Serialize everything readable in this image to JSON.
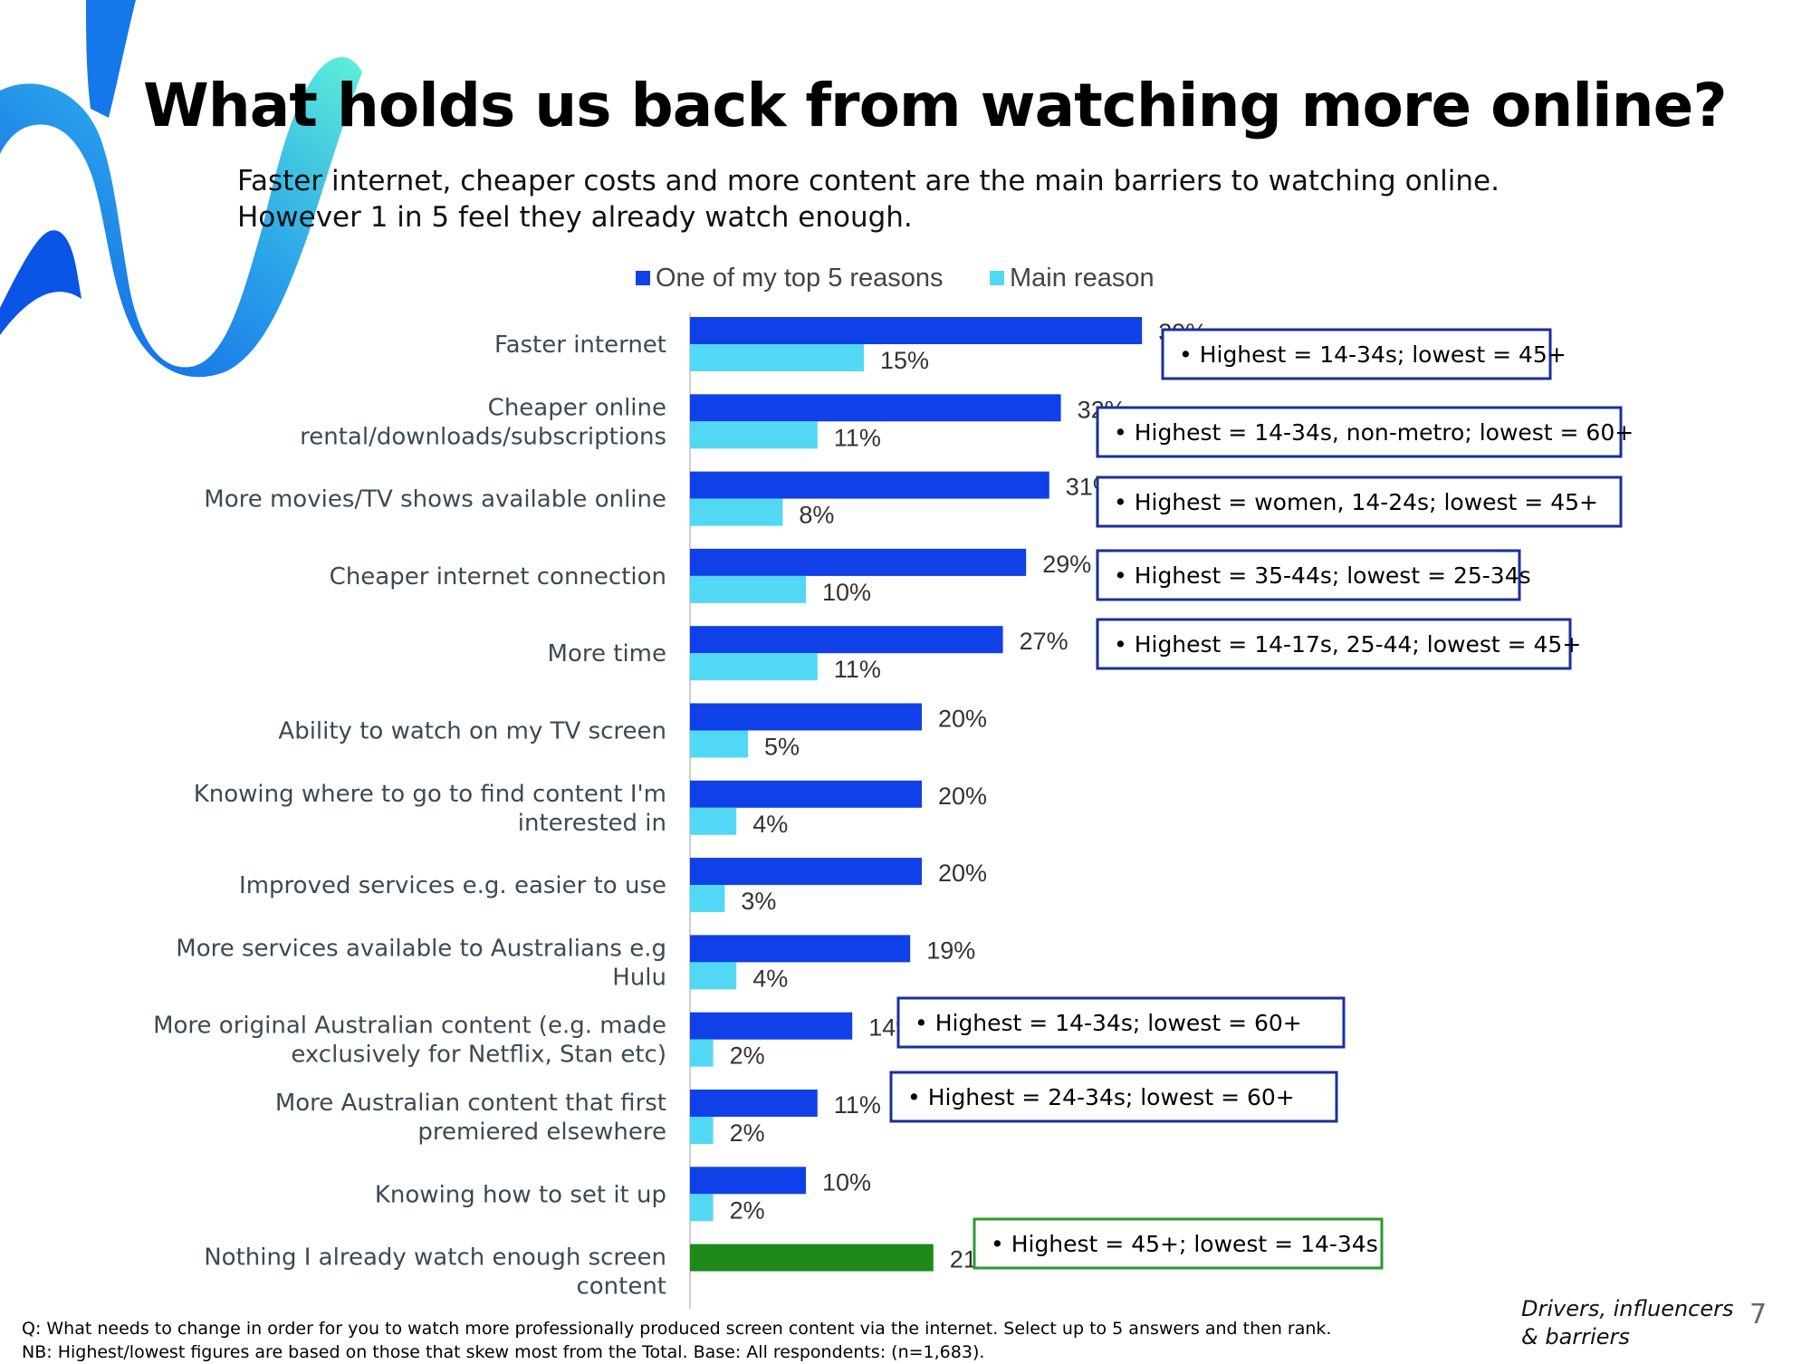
{
  "header": {
    "title": "What holds us back from watching more online?",
    "subtitle_line1": "Faster internet, cheaper costs and more content are the main barriers to watching online.",
    "subtitle_line2": "However 1 in 5 feel they already watch enough."
  },
  "colors": {
    "top5": "#1040e8",
    "main": "#52d8f4",
    "nothing": "#1f8a1a",
    "callout_border": "#1a2f9c",
    "callout_border_green": "#2c9a2c",
    "label_text": "#3a4a55"
  },
  "chart_data": {
    "type": "bar",
    "orientation": "horizontal",
    "legend_position": "top",
    "xlim": [
      0,
      40
    ],
    "categories": [
      "Faster internet",
      "Cheaper online rental/downloads/subscriptions",
      "More movies/TV shows available online",
      "Cheaper internet connection",
      "More time",
      "Ability to watch on my TV screen",
      "Knowing where to go to find content I'm interested in",
      "Improved services e.g. easier to use",
      "More services available to Australians e.g Hulu",
      "More original Australian content (e.g. made exclusively for Netflix, Stan etc)",
      "More Australian content that first premiered elsewhere",
      "Knowing how to set it up",
      "Nothing I already watch enough screen content"
    ],
    "category_lines": [
      [
        "Faster internet"
      ],
      [
        "Cheaper online",
        "rental/downloads/subscriptions"
      ],
      [
        "More movies/TV shows available online"
      ],
      [
        "Cheaper internet connection"
      ],
      [
        "More time"
      ],
      [
        "Ability to watch on my TV screen"
      ],
      [
        "Knowing where to go to find content I'm",
        "interested in"
      ],
      [
        "Improved services e.g. easier to use"
      ],
      [
        "More services available to Australians e.g",
        "Hulu"
      ],
      [
        "More original Australian content (e.g. made",
        "exclusively for Netflix, Stan etc)"
      ],
      [
        "More Australian content that first",
        "premiered elsewhere"
      ],
      [
        "Knowing how to set it up"
      ],
      [
        "Nothing I already watch enough screen",
        "content"
      ]
    ],
    "series": [
      {
        "name": "One of my top 5 reasons",
        "values": [
          39,
          32,
          31,
          29,
          27,
          20,
          20,
          20,
          19,
          14,
          11,
          10,
          21
        ],
        "labels": [
          "39%",
          "32%",
          "31%",
          "29%",
          "27%",
          "20%",
          "20%",
          "20%",
          "19%",
          "14%",
          "11%",
          "10%",
          "21%"
        ]
      },
      {
        "name": "Main reason",
        "values": [
          15,
          11,
          8,
          10,
          11,
          5,
          4,
          3,
          4,
          2,
          2,
          2,
          null
        ],
        "labels": [
          "15%",
          "11%",
          "8%",
          "10%",
          "11%",
          "5%",
          "4%",
          "3%",
          "4%",
          "2%",
          "2%",
          "2%",
          ""
        ]
      }
    ],
    "annotations": [
      {
        "category_index": 0,
        "text": "• Highest = 14-34s; lowest = 45+"
      },
      {
        "category_index": 1,
        "text": "• Highest = 14-34s, non-metro; lowest = 60+"
      },
      {
        "category_index": 2,
        "text": "• Highest = women, 14-24s; lowest = 45+"
      },
      {
        "category_index": 3,
        "text": "• Highest = 35-44s; lowest = 25-34s"
      },
      {
        "category_index": 4,
        "text": "• Highest = 14-17s, 25-44; lowest = 45+"
      },
      {
        "category_index": 9,
        "text": "• Highest = 14-34s; lowest = 60+"
      },
      {
        "category_index": 10,
        "text": "• Highest = 24-34s; lowest = 60+"
      },
      {
        "category_index": 12,
        "text": "• Highest = 45+; lowest = 14-34s"
      }
    ]
  },
  "footer": {
    "question": "Q: What needs to change in order for you to watch more professionally produced screen content via the internet. Select up to 5 answers and then rank.",
    "note": "NB: Highest/lowest figures are based on those that skew most from the Total. Base: All respondents: (n=1,683).",
    "section_line1": "Drivers, influencers",
    "section_line2": "& barriers",
    "page_number": "7"
  }
}
